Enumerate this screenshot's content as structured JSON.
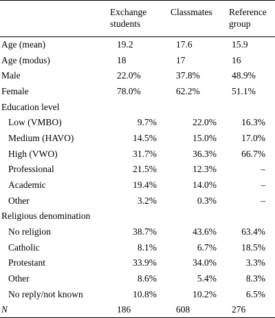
{
  "header": {
    "col1": [
      "Exchange",
      "students"
    ],
    "col2": [
      "Classmates"
    ],
    "col3": [
      "Reference",
      "group"
    ]
  },
  "rows": [
    {
      "label": "Age (mean)",
      "indent": false,
      "v": [
        "19.2",
        "17.6",
        "15.9"
      ],
      "align": "left"
    },
    {
      "label": "Age (modus)",
      "indent": false,
      "v": [
        "18",
        "17",
        "16"
      ],
      "align": "left"
    },
    {
      "label": "Male",
      "indent": false,
      "v": [
        "22.0%",
        "37.8%",
        "48.9%"
      ],
      "align": "left"
    },
    {
      "label": "Female",
      "indent": false,
      "v": [
        "78.0%",
        "62.2%",
        "51.1%"
      ],
      "align": "left"
    },
    {
      "label": "Education level",
      "indent": false,
      "v": [
        "",
        "",
        ""
      ],
      "align": "left"
    },
    {
      "label": "Low (VMBO)",
      "indent": true,
      "v": [
        "9.7%",
        "22.0%",
        "16.3%"
      ],
      "align": "right"
    },
    {
      "label": "Medium (HAVO)",
      "indent": true,
      "v": [
        "14.5%",
        "15.0%",
        "17.0%"
      ],
      "align": "right"
    },
    {
      "label": "High (VWO)",
      "indent": true,
      "v": [
        "31.7%",
        "36.3%",
        "66.7%"
      ],
      "align": "right"
    },
    {
      "label": "Professional",
      "indent": true,
      "v": [
        "21.5%",
        "12.3%",
        "–"
      ],
      "align": "right"
    },
    {
      "label": "Academic",
      "indent": true,
      "v": [
        "19.4%",
        "14.0%",
        "–"
      ],
      "align": "right"
    },
    {
      "label": "Other",
      "indent": true,
      "v": [
        "3.2%",
        "0.3%",
        "–"
      ],
      "align": "right"
    },
    {
      "label": "Religious denomination",
      "indent": false,
      "v": [
        "",
        "",
        ""
      ],
      "align": "left"
    },
    {
      "label": "No religion",
      "indent": true,
      "v": [
        "38.7%",
        "43.6%",
        "63.4%"
      ],
      "align": "right"
    },
    {
      "label": "Catholic",
      "indent": true,
      "v": [
        "8.1%",
        "6.7%",
        "18.5%"
      ],
      "align": "right"
    },
    {
      "label": "Protestant",
      "indent": true,
      "v": [
        "33.9%",
        "34.0%",
        "3.3%"
      ],
      "align": "right"
    },
    {
      "label": "Other",
      "indent": true,
      "v": [
        "8.6%",
        "5.4%",
        "8.3%"
      ],
      "align": "right"
    },
    {
      "label": "No reply/not known",
      "indent": true,
      "v": [
        "10.8%",
        "10.2%",
        "6.5%"
      ],
      "align": "right"
    },
    {
      "label": "N",
      "indent": false,
      "italic": true,
      "v": [
        "186",
        "608",
        "276"
      ],
      "align": "left"
    }
  ]
}
